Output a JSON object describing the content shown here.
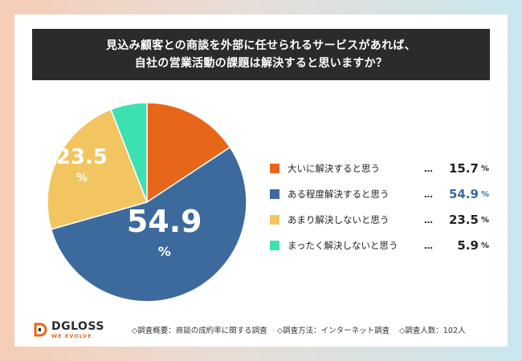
{
  "title": {
    "line1": "見込み顧客との商談を外部に任せられるサービスがあれば、",
    "line2": "自社の営業活動の課題は解決すると思いますか？"
  },
  "chart_data": {
    "type": "pie",
    "title": "見込み顧客との商談を外部に任せられるサービスがあれば、自社の営業活動の課題は解決すると思いますか？",
    "start_angle_deg": 0,
    "direction": "clockwise",
    "unit": "%",
    "slices": [
      {
        "label": "大いに解決すると思う",
        "value": 15.7,
        "color": "#e8661a",
        "pie_label": ""
      },
      {
        "label": "ある程度解決すると思う",
        "value": 54.9,
        "color": "#3c6a9c",
        "pie_label": "54.9"
      },
      {
        "label": "あまり解決しないと思う",
        "value": 23.5,
        "color": "#f2c560",
        "pie_label": "23.5"
      },
      {
        "label": "まったく解決しないと思う",
        "value": 5.9,
        "color": "#3de0b1",
        "pie_label": ""
      }
    ]
  },
  "legend": {
    "dots": "…",
    "unit": "%",
    "values": [
      "15.7",
      "54.9",
      "23.5",
      "5.9"
    ],
    "highlight_index": 1,
    "highlight_color": "#3c6a9c"
  },
  "footer": {
    "logo_name": "DGLOSS",
    "logo_sub": "WE EVOLVE",
    "note1": "◇調査概要：商談の成約率に関する調査",
    "note2": "◇調査方法：インターネット調査",
    "note3": "◇調査人数：102人"
  }
}
